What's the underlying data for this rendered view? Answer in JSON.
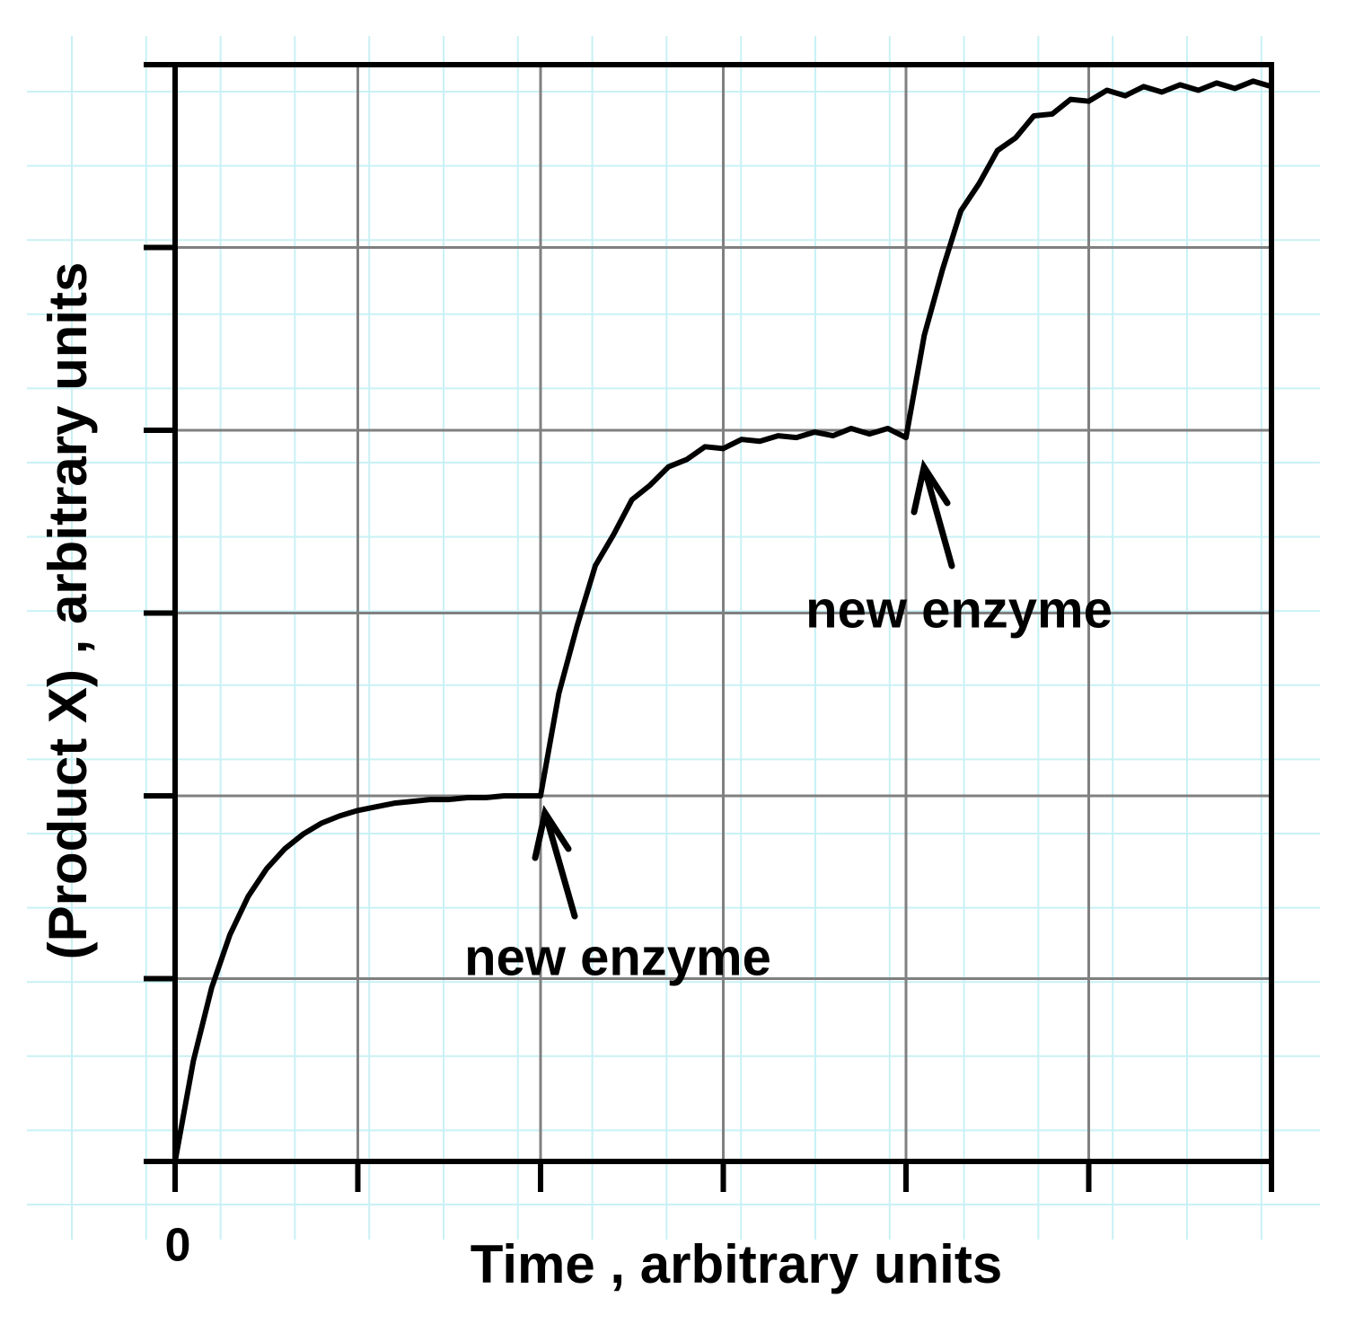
{
  "chart_data": {
    "type": "line",
    "xlabel": "Time , arbitrary units",
    "ylabel": "(Product X) , arbitrary units",
    "x": [
      0,
      0.1,
      0.2,
      0.3,
      0.4,
      0.5,
      0.6,
      0.7,
      0.8,
      0.9,
      1.0,
      1.1,
      1.2,
      1.3,
      1.4,
      1.5,
      1.6,
      1.7,
      1.8,
      1.9,
      2.0,
      2.1,
      2.2,
      2.3,
      2.4,
      2.5,
      2.6,
      2.7,
      2.8,
      2.9,
      3.0,
      3.1,
      3.2,
      3.3,
      3.4,
      3.5,
      3.6,
      3.7,
      3.8,
      3.9,
      4.0,
      4.1,
      4.2,
      4.3,
      4.4,
      4.5,
      4.6,
      4.7,
      4.8,
      4.9,
      5.0,
      5.1,
      5.2,
      5.3,
      5.4,
      5.5,
      5.6,
      5.7,
      5.8,
      5.9,
      6.0
    ],
    "values": [
      0,
      0.55,
      0.95,
      1.24,
      1.45,
      1.6,
      1.71,
      1.79,
      1.85,
      1.89,
      1.92,
      1.94,
      1.96,
      1.97,
      1.98,
      1.98,
      1.99,
      1.99,
      2.0,
      2.0,
      2.0,
      2.56,
      2.93,
      3.26,
      3.43,
      3.62,
      3.7,
      3.8,
      3.84,
      3.91,
      3.9,
      3.95,
      3.94,
      3.97,
      3.96,
      3.99,
      3.97,
      4.01,
      3.98,
      4.01,
      3.96,
      4.52,
      4.88,
      5.2,
      5.35,
      5.53,
      5.6,
      5.72,
      5.73,
      5.81,
      5.8,
      5.86,
      5.83,
      5.88,
      5.85,
      5.89,
      5.86,
      5.9,
      5.87,
      5.91,
      5.88
    ],
    "color": "#000000",
    "xlim": [
      0,
      6
    ],
    "ylim": [
      0,
      6
    ],
    "xticks": [
      0,
      1,
      2,
      3,
      4,
      5,
      6
    ],
    "yticks": [
      0,
      1,
      2,
      3,
      4,
      5,
      6
    ],
    "tick_labels": "origin-only",
    "grid": true,
    "annotations": [
      "new enzyme",
      "new enzyme"
    ]
  }
}
